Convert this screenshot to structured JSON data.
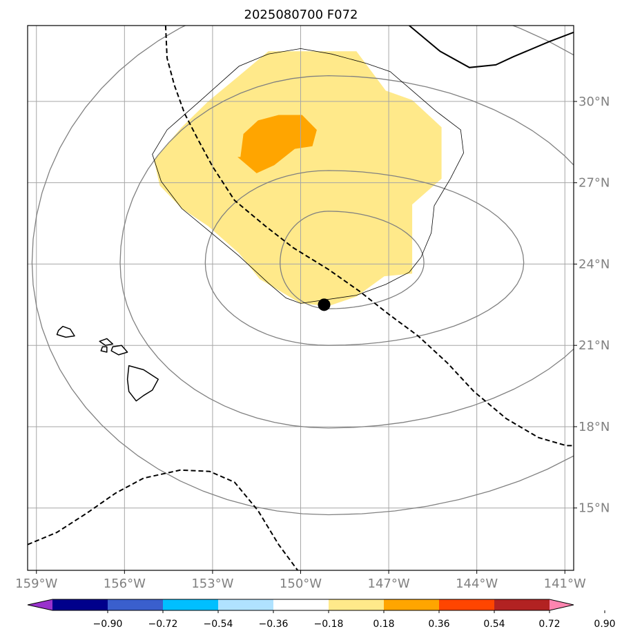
{
  "chart_data": {
    "type": "map",
    "title": "2025080700 F072",
    "projection": "lat-lon",
    "lon_range": [
      -159.3,
      -140.7
    ],
    "lat_range": [
      12.7,
      32.8
    ],
    "x_ticks": [
      "159°W",
      "156°W",
      "153°W",
      "150°W",
      "147°W",
      "144°W",
      "141°W"
    ],
    "x_tick_values": [
      -159,
      -156,
      -153,
      -150,
      -147,
      -144,
      -141
    ],
    "y_ticks": [
      "15°N",
      "18°N",
      "21°N",
      "24°N",
      "27°N",
      "30°N"
    ],
    "y_tick_values": [
      15,
      18,
      21,
      24,
      27,
      30
    ],
    "grid": true,
    "colorbar": {
      "placement": "bottom",
      "extend": "both",
      "levels": [
        "-0.90",
        "-0.72",
        "-0.54",
        "-0.36",
        "-0.18",
        "0.18",
        "0.36",
        "0.54",
        "0.72",
        "0.90"
      ],
      "level_values": [
        -0.9,
        -0.72,
        -0.54,
        -0.36,
        -0.18,
        0.18,
        0.36,
        0.54,
        0.72,
        0.9
      ],
      "colors": [
        "#9932cc",
        "#00008b",
        "#3a5fcd",
        "#00bfff",
        "#b0e2ff",
        "#ffffff",
        "#ffe98a",
        "#ffa500",
        "#ff4500",
        "#b22222",
        "#ff85b0"
      ]
    },
    "center_marker": {
      "lon": -149.2,
      "lat": 22.5,
      "color": "#000000"
    },
    "filled_regions": [
      {
        "level": "0.18 to 0.36",
        "color": "#ffe98a",
        "outline": [
          [
            -150,
            22.55
          ],
          [
            -149.05,
            22.45
          ],
          [
            -148.1,
            22.8
          ],
          [
            -147.15,
            23.55
          ],
          [
            -146.2,
            23.65
          ],
          [
            -146.2,
            26.2
          ],
          [
            -145.2,
            27.15
          ],
          [
            -145.2,
            29.05
          ],
          [
            -146.2,
            30.05
          ],
          [
            -147.1,
            30.4
          ],
          [
            -148.1,
            31.85
          ],
          [
            -149.05,
            31.85
          ],
          [
            -150,
            31.85
          ],
          [
            -151.1,
            31.85
          ],
          [
            -152.15,
            30.9
          ],
          [
            -153.15,
            30
          ],
          [
            -154.05,
            29.05
          ],
          [
            -155.0,
            27.85
          ],
          [
            -154.8,
            26.9
          ],
          [
            -154.05,
            26.05
          ],
          [
            -153.15,
            25.4
          ],
          [
            -152.1,
            24.4
          ],
          [
            -151.4,
            23.45
          ]
        ]
      },
      {
        "level": "0.36 to 0.54",
        "color": "#ffa500",
        "outline": [
          [
            -151.5,
            27.35
          ],
          [
            -150.9,
            27.65
          ],
          [
            -150.2,
            28.25
          ],
          [
            -149.6,
            28.35
          ],
          [
            -149.45,
            28.95
          ],
          [
            -149.95,
            29.5
          ],
          [
            -150.75,
            29.5
          ],
          [
            -151.45,
            29.3
          ],
          [
            -151.95,
            28.8
          ],
          [
            -152.05,
            27.95
          ],
          [
            -152.15,
            27.95
          ]
        ]
      }
    ],
    "contour_rings": [
      {
        "center": [
          -149.05,
          24.05
        ],
        "rx": [
          1.65,
          3.25
        ],
        "ry": [
          1.7,
          1.9
        ]
      },
      {
        "center": [
          -149.05,
          24.05
        ],
        "rx": [
          4.2,
          6.65
        ],
        "ry": [
          3.05,
          3.4
        ]
      },
      {
        "center": [
          -149.05,
          24.05
        ],
        "rx": [
          7.1,
          9.8
        ],
        "ry": [
          6.1,
          6.9
        ]
      },
      {
        "center": [
          -149.05,
          24.05
        ],
        "rx": [
          10.1,
          13.0
        ],
        "ry": [
          9.3,
          10.0
        ]
      }
    ],
    "thin_outline": [
      [
        -150,
        22.55
      ],
      [
        -148.1,
        22.85
      ],
      [
        -147.1,
        23.25
      ],
      [
        -146.3,
        23.7
      ],
      [
        -145.9,
        24.25
      ],
      [
        -145.55,
        25.15
      ],
      [
        -145.45,
        26.15
      ],
      [
        -144.9,
        27.15
      ],
      [
        -144.45,
        28.1
      ],
      [
        -144.55,
        28.95
      ],
      [
        -145.4,
        29.65
      ],
      [
        -146.2,
        30.4
      ],
      [
        -146.95,
        31.1
      ],
      [
        -147.75,
        31.4
      ],
      [
        -148.95,
        31.75
      ],
      [
        -150,
        31.95
      ],
      [
        -151.1,
        31.75
      ],
      [
        -152.1,
        31.3
      ],
      [
        -153.5,
        29.95
      ],
      [
        -154.55,
        28.95
      ],
      [
        -155.05,
        28.05
      ],
      [
        -154.75,
        27.05
      ],
      [
        -154.05,
        26.05
      ],
      [
        -153.1,
        25.2
      ],
      [
        -152.1,
        24.3
      ],
      [
        -151.1,
        23.3
      ],
      [
        -150.5,
        22.75
      ]
    ],
    "dashed_lines": [
      [
        [
          -154.6,
          32.8
        ],
        [
          -154.55,
          31.6
        ],
        [
          -154.3,
          30.6
        ],
        [
          -153.95,
          29.55
        ],
        [
          -153.5,
          28.6
        ],
        [
          -153.0,
          27.6
        ],
        [
          -152.25,
          26.35
        ],
        [
          -151.2,
          25.4
        ],
        [
          -150.25,
          24.6
        ],
        [
          -149.05,
          23.8
        ],
        [
          -148.0,
          23.0
        ],
        [
          -147.0,
          22.15
        ],
        [
          -146.0,
          21.35
        ],
        [
          -145.0,
          20.35
        ],
        [
          -144.1,
          19.3
        ],
        [
          -143.0,
          18.3
        ],
        [
          -141.9,
          17.6
        ],
        [
          -140.95,
          17.3
        ],
        [
          -140.25,
          17.3
        ],
        [
          -139.3,
          17.55
        ]
      ],
      [
        [
          -159.3,
          13.65
        ],
        [
          -158.3,
          14.1
        ],
        [
          -157.3,
          14.8
        ],
        [
          -156.3,
          15.55
        ],
        [
          -155.35,
          16.1
        ],
        [
          -154.1,
          16.4
        ],
        [
          -153.1,
          16.35
        ],
        [
          -152.25,
          15.95
        ],
        [
          -151.45,
          14.9
        ],
        [
          -150.75,
          13.65
        ],
        [
          -150.1,
          12.7
        ]
      ]
    ],
    "solid_lines": [
      [
        [
          -146.3,
          32.8
        ],
        [
          -145.25,
          31.85
        ],
        [
          -144.25,
          31.25
        ],
        [
          -143.35,
          31.35
        ],
        [
          -142.75,
          31.65
        ],
        [
          -141.55,
          32.2
        ],
        [
          -140.7,
          32.55
        ]
      ]
    ],
    "islands": [
      [
        [
          -158.25,
          21.55
        ],
        [
          -158.1,
          21.7
        ],
        [
          -157.85,
          21.6
        ],
        [
          -157.7,
          21.35
        ],
        [
          -158.0,
          21.3
        ],
        [
          -158.3,
          21.4
        ]
      ],
      [
        [
          -156.85,
          21.15
        ],
        [
          -156.6,
          21.25
        ],
        [
          -156.4,
          21.05
        ],
        [
          -156.65,
          21.0
        ]
      ],
      [
        [
          -156.75,
          20.95
        ],
        [
          -156.6,
          20.95
        ],
        [
          -156.6,
          20.75
        ],
        [
          -156.8,
          20.8
        ]
      ],
      [
        [
          -156.4,
          20.95
        ],
        [
          -156.1,
          21.0
        ],
        [
          -155.9,
          20.75
        ],
        [
          -156.2,
          20.65
        ],
        [
          -156.45,
          20.8
        ]
      ],
      [
        [
          -155.85,
          20.25
        ],
        [
          -155.35,
          20.1
        ],
        [
          -154.85,
          19.75
        ],
        [
          -155.05,
          19.35
        ],
        [
          -155.35,
          19.15
        ],
        [
          -155.6,
          18.95
        ],
        [
          -155.85,
          19.3
        ],
        [
          -155.9,
          19.75
        ]
      ]
    ]
  }
}
